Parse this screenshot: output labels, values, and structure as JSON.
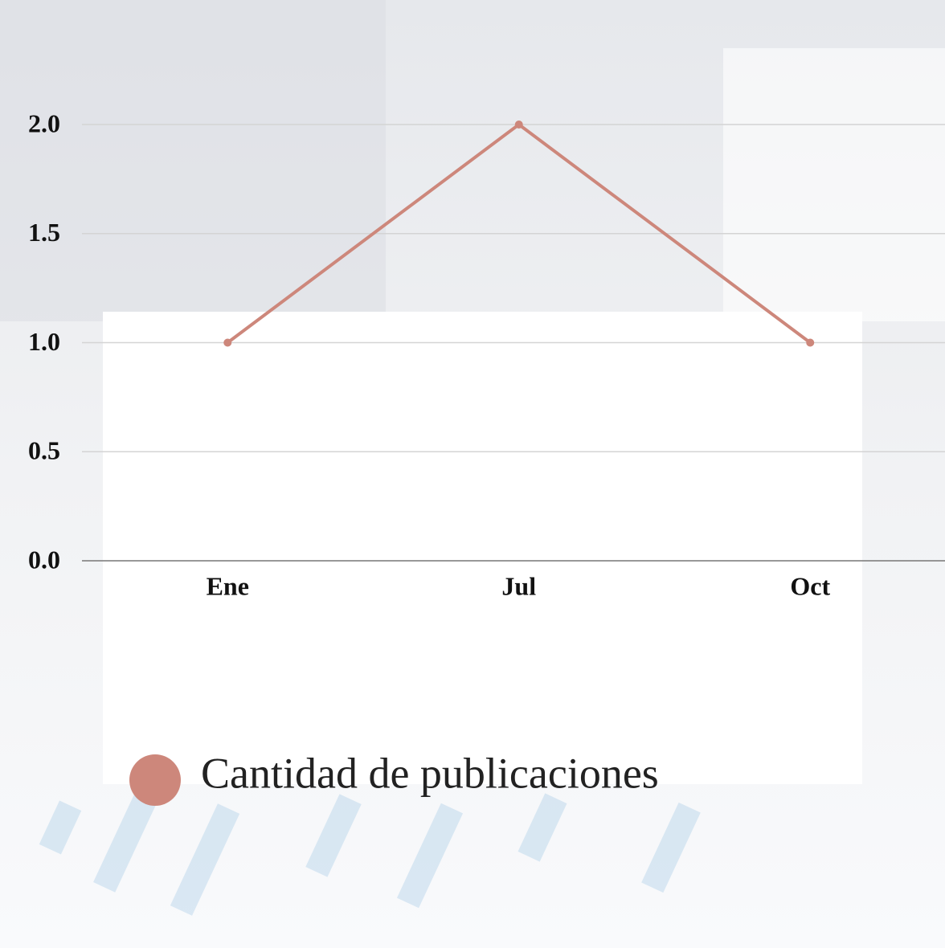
{
  "chart_data": {
    "type": "line",
    "categories": [
      "Ene",
      "Jul",
      "Oct"
    ],
    "series": [
      {
        "name": "Cantidad de publicaciones",
        "color": "#cd877b",
        "values": [
          1,
          2,
          1
        ]
      }
    ],
    "ylim": [
      0,
      2
    ],
    "yticks": [
      {
        "value": 0,
        "label": "0.0"
      },
      {
        "value": 0.5,
        "label": "0.5"
      },
      {
        "value": 1,
        "label": "1.0"
      },
      {
        "value": 1.5,
        "label": "1.5"
      },
      {
        "value": 2,
        "label": "2.0"
      }
    ],
    "grid": true
  }
}
